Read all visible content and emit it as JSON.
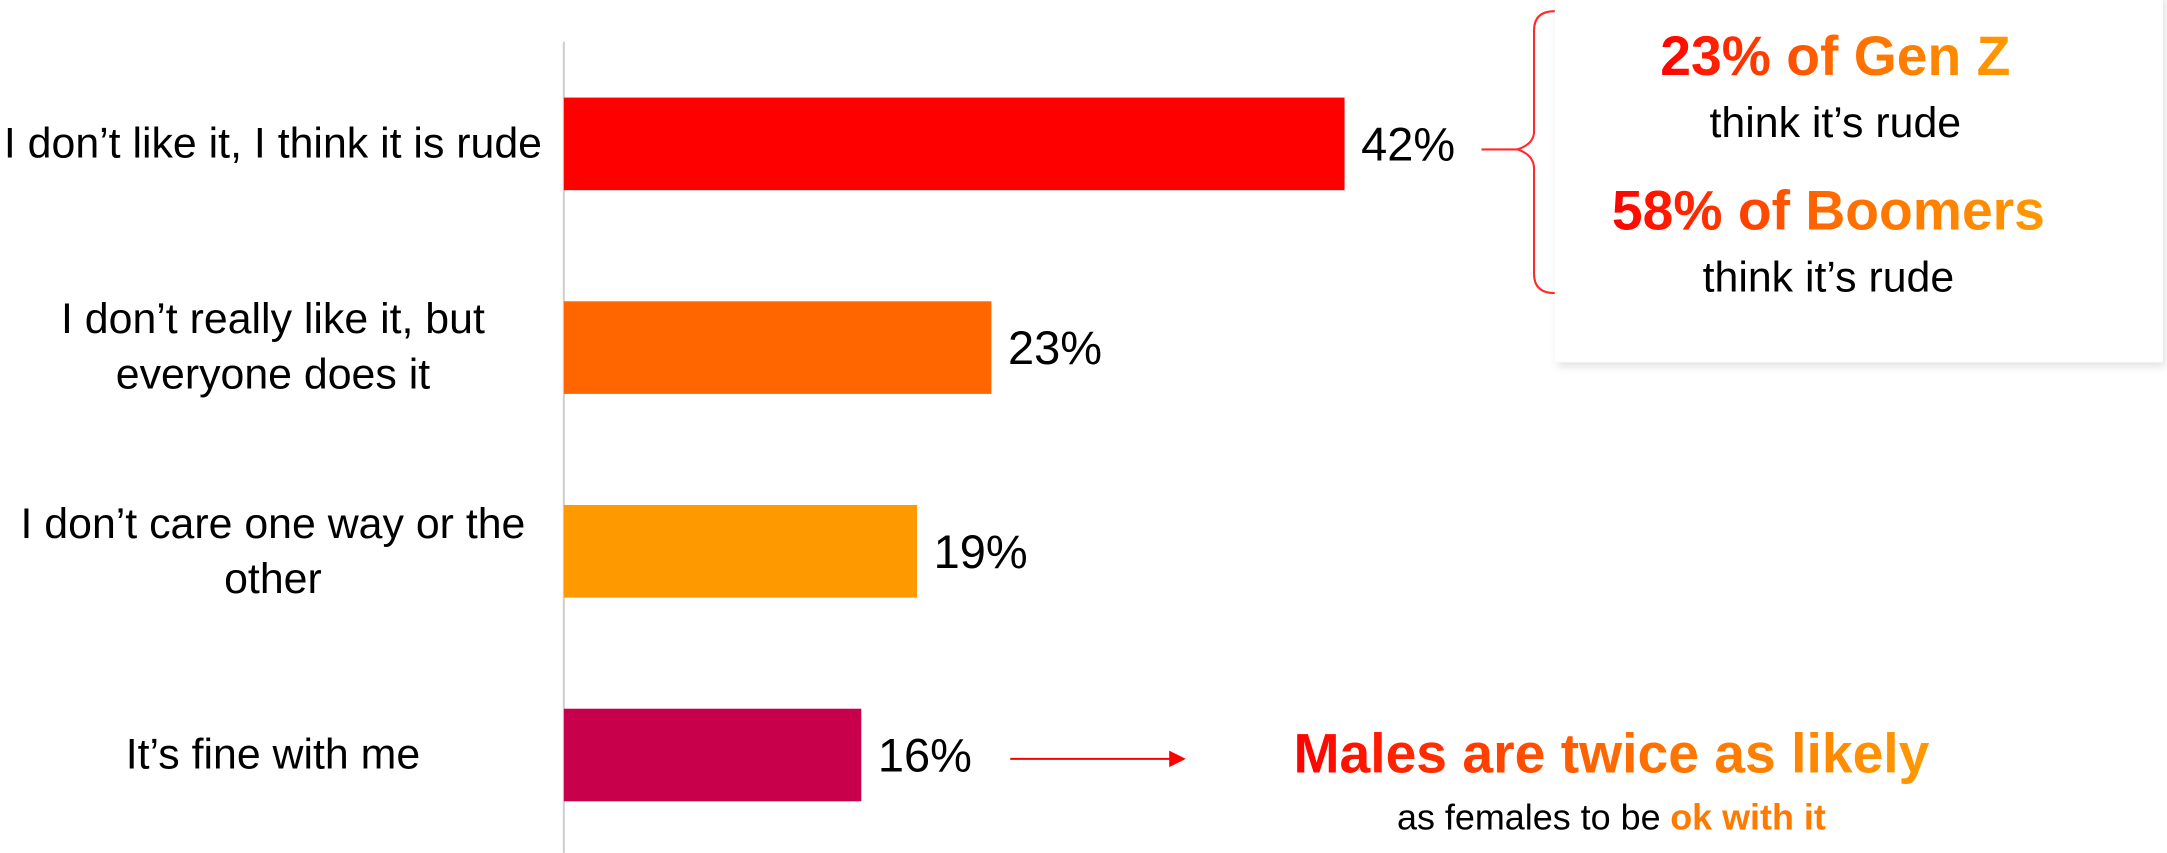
{
  "chart_data": {
    "type": "bar",
    "orientation": "horizontal",
    "categories": [
      "I don’t like it, I think it is rude",
      "I don’t really like it, but everyone does it",
      "I don’t care one way or the other",
      "It’s fine with me"
    ],
    "values": [
      42,
      23,
      19,
      16
    ],
    "value_labels": [
      "42%",
      "23%",
      "19%",
      "16%"
    ],
    "colors": [
      "#ff0000",
      "#ff6600",
      "#ff9900",
      "#c8004b"
    ],
    "xlim": [
      0,
      100
    ],
    "annotations": [
      "23% of Gen Z",
      "think it’s rude",
      "58% of Boomers",
      "think it’s rude",
      "Males are twice as likely",
      "as females to be",
      "ok with it"
    ]
  }
}
